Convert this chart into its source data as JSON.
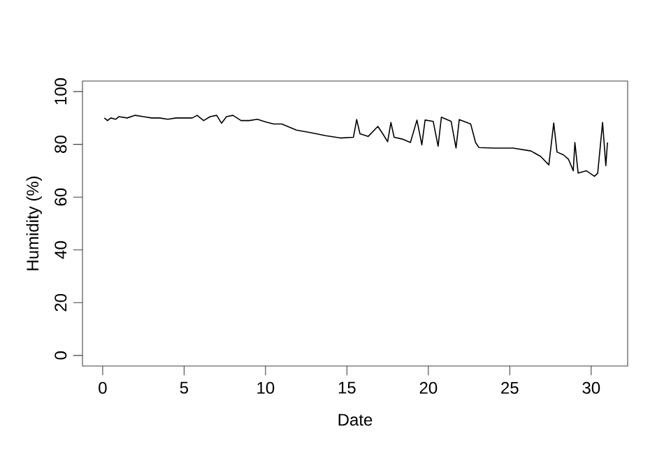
{
  "chart_data": {
    "type": "line",
    "xlabel": "Date",
    "ylabel": "Humidity (%)",
    "xlim": [
      -1.24,
      32.24
    ],
    "ylim": [
      -4,
      104
    ],
    "xticks": [
      0,
      5,
      10,
      15,
      20,
      25,
      30
    ],
    "yticks": [
      0,
      20,
      40,
      60,
      80,
      100
    ],
    "marker": "none",
    "line_style": "solid",
    "series": [
      {
        "color": "#000000",
        "x": [
          0.1,
          0.3,
          0.5,
          0.8,
          1.0,
          1.5,
          2.0,
          2.5,
          3.0,
          3.5,
          4.0,
          4.5,
          5.0,
          5.5,
          5.8,
          6.2,
          6.6,
          7.0,
          7.3,
          7.6,
          8.0,
          8.5,
          9.0,
          9.5,
          10.0,
          10.5,
          11.0,
          11.9,
          12.8,
          13.7,
          14.6,
          15.4,
          15.6,
          15.8,
          16.3,
          16.9,
          17.2,
          17.5,
          17.7,
          17.9,
          18.4,
          18.9,
          19.3,
          19.6,
          19.8,
          20.3,
          20.6,
          20.8,
          21.4,
          21.7,
          21.9,
          22.6,
          22.9,
          23.1,
          24.0,
          25.2,
          26.3,
          26.9,
          27.4,
          27.7,
          27.9,
          28.3,
          28.6,
          28.9,
          29.0,
          29.2,
          29.7,
          30.2,
          30.4,
          30.7,
          30.9,
          31.0
        ],
        "values": [
          90,
          89,
          90,
          89.5,
          90.5,
          90,
          91,
          90.5,
          90,
          90,
          89.5,
          90,
          90,
          90,
          91,
          89,
          90.5,
          91,
          88,
          90.5,
          91,
          89,
          89,
          89.5,
          88.5,
          87.7,
          87.7,
          85.4,
          84.4,
          83.3,
          82.4,
          82.7,
          89.4,
          84,
          83,
          86.8,
          84,
          81,
          88.3,
          82.7,
          82,
          80.7,
          89.2,
          79.8,
          89.2,
          88.7,
          79.3,
          90.3,
          88.7,
          78.6,
          89.4,
          87.7,
          80.7,
          78.8,
          78.6,
          78.6,
          77.5,
          75.4,
          72.2,
          88.1,
          77.1,
          76,
          74.4,
          70,
          80.7,
          69.1,
          70,
          67.9,
          69.1,
          88.3,
          71.9,
          80.7
        ]
      }
    ]
  }
}
